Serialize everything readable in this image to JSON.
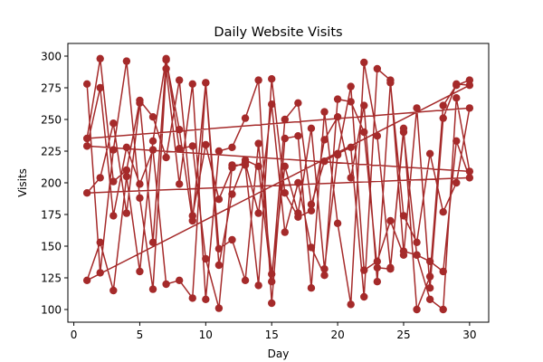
{
  "chart_data": {
    "type": "line",
    "title": "Daily Website Visits",
    "xlabel": "Day",
    "ylabel": "Visits",
    "xlim": [
      -0.45,
      31.45
    ],
    "ylim": [
      90,
      310
    ],
    "xticks": [
      0,
      5,
      10,
      15,
      20,
      25,
      30
    ],
    "yticks": [
      100,
      125,
      150,
      175,
      200,
      225,
      250,
      275,
      300
    ],
    "grid": false,
    "color": "#a52a2a",
    "points": [
      [
        1,
        278
      ],
      [
        2,
        129
      ],
      [
        3,
        226
      ],
      [
        4,
        296
      ],
      [
        5,
        188
      ],
      [
        6,
        116
      ],
      [
        7,
        290
      ],
      [
        8,
        199
      ],
      [
        9,
        278
      ],
      [
        10,
        108
      ],
      [
        11,
        225
      ],
      [
        12,
        228
      ],
      [
        13,
        251
      ],
      [
        14,
        281
      ],
      [
        15,
        105
      ],
      [
        16,
        235
      ],
      [
        17,
        237
      ],
      [
        18,
        117
      ],
      [
        19,
        256
      ],
      [
        20,
        168
      ],
      [
        21,
        104
      ],
      [
        22,
        295
      ],
      [
        23,
        237
      ],
      [
        24,
        133
      ],
      [
        25,
        240
      ],
      [
        26,
        143
      ],
      [
        27,
        108
      ],
      [
        28,
        100
      ],
      [
        29,
        267
      ],
      [
        30,
        209
      ],
      [
        1,
        229
      ],
      [
        2,
        275
      ],
      [
        3,
        174
      ],
      [
        4,
        228
      ],
      [
        5,
        199
      ],
      [
        6,
        226
      ],
      [
        7,
        120
      ],
      [
        8,
        123
      ],
      [
        9,
        109
      ],
      [
        10,
        279
      ],
      [
        11,
        135
      ],
      [
        12,
        191
      ],
      [
        13,
        218
      ],
      [
        14,
        213
      ],
      [
        15,
        122
      ],
      [
        16,
        250
      ],
      [
        17,
        263
      ],
      [
        18,
        183
      ],
      [
        19,
        217
      ],
      [
        20,
        223
      ],
      [
        21,
        228
      ],
      [
        22,
        110
      ],
      [
        23,
        290
      ],
      [
        24,
        281
      ],
      [
        25,
        146
      ],
      [
        26,
        143
      ],
      [
        27,
        138
      ],
      [
        28,
        130
      ],
      [
        29,
        233
      ],
      [
        30,
        204
      ],
      [
        1,
        192
      ],
      [
        2,
        204
      ],
      [
        3,
        247
      ],
      [
        4,
        176
      ],
      [
        5,
        263
      ],
      [
        6,
        153
      ],
      [
        7,
        297
      ],
      [
        8,
        242
      ],
      [
        9,
        170
      ],
      [
        10,
        279
      ],
      [
        11,
        148
      ],
      [
        12,
        155
      ],
      [
        13,
        123
      ],
      [
        14,
        231
      ],
      [
        15,
        128
      ],
      [
        16,
        213
      ],
      [
        17,
        176
      ],
      [
        18,
        243
      ],
      [
        19,
        132
      ],
      [
        20,
        222
      ],
      [
        21,
        276
      ],
      [
        22,
        131
      ],
      [
        23,
        138
      ],
      [
        24,
        170
      ],
      [
        25,
        143
      ],
      [
        26,
        259
      ],
      [
        27,
        117
      ],
      [
        28,
        251
      ],
      [
        29,
        278
      ],
      [
        30,
        277
      ],
      [
        1,
        123
      ],
      [
        2,
        153
      ],
      [
        3,
        115
      ],
      [
        4,
        205
      ],
      [
        5,
        130
      ],
      [
        6,
        233
      ],
      [
        7,
        298
      ],
      [
        8,
        227
      ],
      [
        9,
        229
      ],
      [
        10,
        140
      ],
      [
        11,
        101
      ],
      [
        12,
        214
      ],
      [
        13,
        214
      ],
      [
        14,
        119
      ],
      [
        15,
        282
      ],
      [
        16,
        192
      ],
      [
        17,
        173
      ],
      [
        18,
        178
      ],
      [
        19,
        234
      ],
      [
        20,
        252
      ],
      [
        21,
        204
      ],
      [
        22,
        261
      ],
      [
        23,
        122
      ],
      [
        24,
        279
      ],
      [
        25,
        174
      ],
      [
        26,
        153
      ],
      [
        27,
        223
      ],
      [
        28,
        177
      ],
      [
        29,
        200
      ],
      [
        30,
        259
      ],
      [
        1,
        235
      ],
      [
        2,
        298
      ],
      [
        3,
        201
      ],
      [
        4,
        210
      ],
      [
        5,
        265
      ],
      [
        6,
        252
      ],
      [
        7,
        220
      ],
      [
        8,
        281
      ],
      [
        9,
        174
      ],
      [
        10,
        230
      ],
      [
        11,
        187
      ],
      [
        12,
        212
      ],
      [
        13,
        216
      ],
      [
        14,
        176
      ],
      [
        15,
        262
      ],
      [
        16,
        161
      ],
      [
        17,
        200
      ],
      [
        18,
        149
      ],
      [
        19,
        127
      ],
      [
        20,
        266
      ],
      [
        21,
        264
      ],
      [
        22,
        240
      ],
      [
        23,
        133
      ],
      [
        24,
        132
      ],
      [
        25,
        243
      ],
      [
        26,
        100
      ],
      [
        27,
        126
      ],
      [
        28,
        261
      ],
      [
        29,
        277
      ],
      [
        30,
        281
      ]
    ]
  }
}
